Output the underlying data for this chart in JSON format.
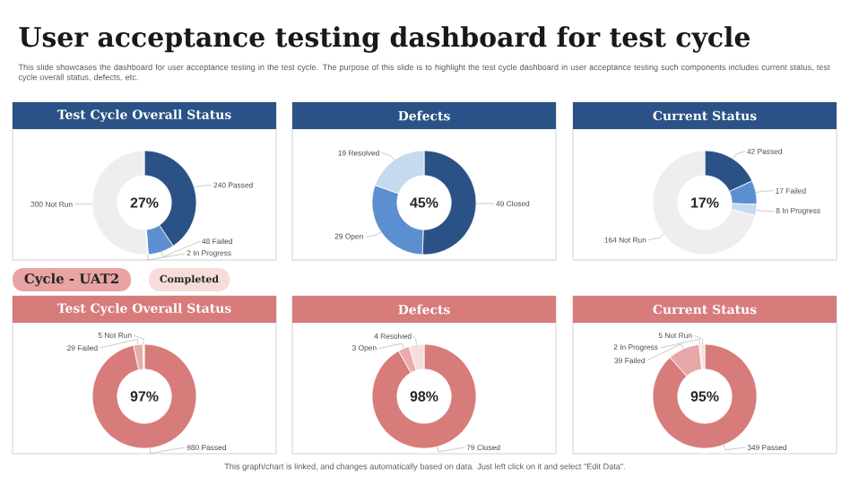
{
  "chart_data": [
    {
      "type": "other",
      "title": "User acceptance testing dashboard for test cycle",
      "subtitle": "This slide showcases the dashboard for user acceptance testing in the test cycle. The purpose of this slide is to highlight the test cycle dashboard in user acceptance testing such components includes current status, test cycle overall status, defects, etc.",
      "annotations": [
        "This graph/chart is linked, and changes automatically based on data. Just left click on it and select \"Edit Data\"."
      ]
    },
    {
      "type": "donut",
      "title": "Test Cycle Overall Status",
      "categories": [
        "Passed",
        "Failed",
        "In Progress",
        "Not Run"
      ],
      "values": [
        240,
        48,
        2,
        300
      ],
      "colors": [
        "#2b5286",
        "#5b8fd0",
        "#c5d9ef",
        "#eeeeee"
      ],
      "data_labels": true,
      "annotations": [
        "27%"
      ]
    },
    {
      "type": "donut",
      "title": "Defects",
      "categories": [
        "Closed",
        "Open",
        "Resolved"
      ],
      "values": [
        49,
        29,
        19
      ],
      "colors": [
        "#2b5286",
        "#5b8fd0",
        "#c5d9ef"
      ],
      "data_labels": true,
      "annotations": [
        "45%"
      ]
    },
    {
      "type": "donut",
      "title": "Current Status",
      "categories": [
        "Passed",
        "Failed",
        "In Progress",
        "Not Run"
      ],
      "values": [
        42,
        17,
        8,
        164
      ],
      "colors": [
        "#2b5286",
        "#5b8fd0",
        "#c5d9ef",
        "#eeeeee"
      ],
      "data_labels": true,
      "annotations": [
        "17%"
      ]
    },
    {
      "type": "other",
      "annotations": [
        "Cycle - UAT2",
        "Completed"
      ]
    },
    {
      "type": "donut",
      "title": "Test Cycle Overall Status",
      "categories": [
        "Passed",
        "Failed",
        "Not Run"
      ],
      "values": [
        980,
        29,
        5
      ],
      "colors": [
        "#d77b7b",
        "#e9abab",
        "#f6dcdc"
      ],
      "data_labels": true,
      "annotations": [
        "97%"
      ]
    },
    {
      "type": "donut",
      "title": "Defects",
      "categories": [
        "Closed",
        "Open",
        "Resolved"
      ],
      "values": [
        79,
        3,
        4
      ],
      "colors": [
        "#d77b7b",
        "#e9abab",
        "#f6dcdc"
      ],
      "data_labels": true,
      "annotations": [
        "98%"
      ]
    },
    {
      "type": "donut",
      "title": "Current Status",
      "categories": [
        "Passed",
        "Failed",
        "In Progress",
        "Not Run"
      ],
      "values": [
        349,
        39,
        2,
        5
      ],
      "colors": [
        "#d77b7b",
        "#e8a7a7",
        "#f0c6c6",
        "#f7dede"
      ],
      "data_labels": true,
      "annotations": [
        "95%"
      ]
    }
  ]
}
